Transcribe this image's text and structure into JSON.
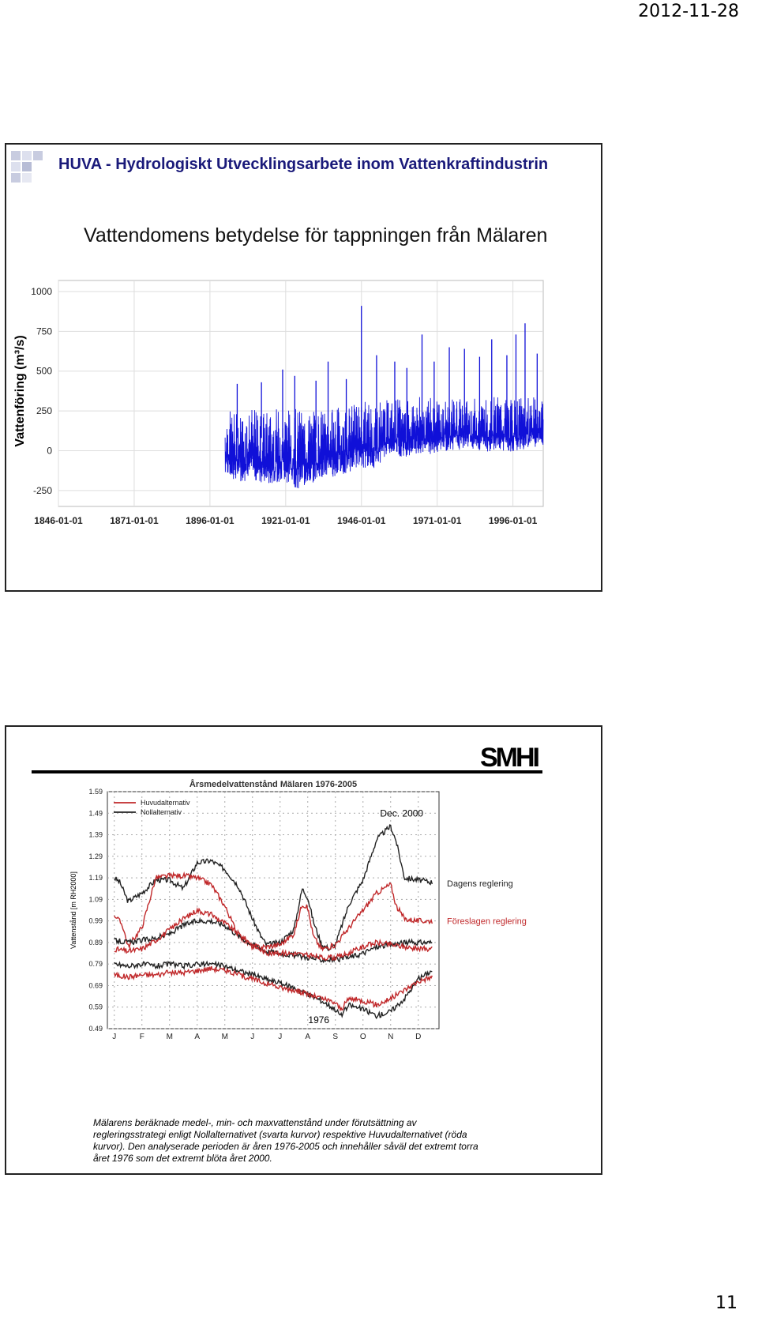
{
  "page": {
    "date": "2012-11-28",
    "number": "11"
  },
  "slide1": {
    "header": "HUVA - Hydrologiskt Utvecklingsarbete inom Vattenkraftindustrin",
    "title": "Vattendomens betydelse för tappningen från Mälaren",
    "chart_data": {
      "type": "line",
      "title": "",
      "ylabel": "Vattenföring (m³/s)",
      "xlabel": "",
      "x_tick_labels": [
        "1846-01-01",
        "1871-01-01",
        "1896-01-01",
        "1921-01-01",
        "1946-01-01",
        "1971-01-01",
        "1996-01-01"
      ],
      "y_tick_labels": [
        "1000",
        "750",
        "500",
        "250",
        "0",
        "-250"
      ],
      "yticks": [
        1000,
        750,
        500,
        250,
        0,
        -250
      ],
      "ylim": [
        -400,
        1000
      ],
      "xlim_years": [
        1846,
        2006
      ],
      "grid": true,
      "series": [
        {
          "color": "#1010d8",
          "x_range_years": [
            1901,
            2006
          ],
          "x_years": [
            1901,
            1905,
            1910,
            1915,
            1920,
            1925,
            1930,
            1935,
            1940,
            1945,
            1950,
            1955,
            1960,
            1965,
            1970,
            1975,
            1980,
            1985,
            1990,
            1995,
            2000,
            2006
          ],
          "baseline_low": [
            -150,
            -200,
            -180,
            -220,
            -190,
            -240,
            -200,
            -170,
            -160,
            -100,
            -120,
            -20,
            -40,
            -30,
            -20,
            0,
            10,
            -10,
            0,
            -10,
            10,
            20
          ],
          "baseline_high": [
            260,
            240,
            260,
            250,
            270,
            260,
            250,
            260,
            280,
            300,
            330,
            320,
            330,
            340,
            330,
            320,
            330,
            330,
            340,
            330,
            340,
            330
          ],
          "peaks": [
            {
              "x": 1905,
              "y": 420
            },
            {
              "x": 1913,
              "y": 430
            },
            {
              "x": 1920,
              "y": 510
            },
            {
              "x": 1924,
              "y": 470
            },
            {
              "x": 1931,
              "y": 440
            },
            {
              "x": 1935,
              "y": 560
            },
            {
              "x": 1941,
              "y": 450
            },
            {
              "x": 1946,
              "y": 910
            },
            {
              "x": 1951,
              "y": 600
            },
            {
              "x": 1957,
              "y": 560
            },
            {
              "x": 1961,
              "y": 520
            },
            {
              "x": 1966,
              "y": 730
            },
            {
              "x": 1970,
              "y": 560
            },
            {
              "x": 1975,
              "y": 650
            },
            {
              "x": 1980,
              "y": 640
            },
            {
              "x": 1985,
              "y": 590
            },
            {
              "x": 1989,
              "y": 700
            },
            {
              "x": 1994,
              "y": 600
            },
            {
              "x": 1997,
              "y": 730
            },
            {
              "x": 2000,
              "y": 800
            },
            {
              "x": 2004,
              "y": 610
            }
          ]
        }
      ]
    }
  },
  "slide2": {
    "logo": "SMHI",
    "caption_lines": [
      "Mälarens beräknade medel-, min- och maxvattenstånd under förutsättning av",
      "regleringsstrategi enligt Nollalternativet (svarta kurvor) respektive Huvudalternativet (röda",
      "kurvor). Den analyserade perioden är åren 1976-2005 och innehåller såväl det extremt torra",
      "året 1976 som det extremt blöta året 2000."
    ],
    "chart_data": {
      "type": "line",
      "title": "Årsmedelvattenstånd Mälaren 1976-2005",
      "ylabel": "Vattenstånd [m RH2000]",
      "xlabel": "",
      "categories": [
        "J",
        "F",
        "M",
        "A",
        "M",
        "J",
        "J",
        "A",
        "S",
        "O",
        "N",
        "D"
      ],
      "y_tick_labels": [
        "1.59",
        "1.49",
        "1.39",
        "1.29",
        "1.19",
        "1.09",
        "0.99",
        "0.89",
        "0.79",
        "0.69",
        "0.59",
        "0.49"
      ],
      "yticks": [
        1.59,
        1.49,
        1.39,
        1.29,
        1.19,
        1.09,
        0.99,
        0.89,
        0.79,
        0.69,
        0.59,
        0.49
      ],
      "ylim": [
        0.49,
        1.59
      ],
      "legend": {
        "position": "top-left",
        "items": [
          {
            "label": "Huvudalternativ",
            "color": "#c0282a"
          },
          {
            "label": "Nollalternativ",
            "color": "#222222"
          }
        ]
      },
      "annotations": [
        {
          "text": "Dec. 2000",
          "x_month": 10.4,
          "y": 1.49
        },
        {
          "text": "1976",
          "x_month": 7.4,
          "y": 0.53
        },
        {
          "text": "Dagens reglering",
          "side": "right",
          "y": 1.165
        },
        {
          "text": "Föreslagen reglering",
          "side": "right",
          "y": 0.99,
          "color": "#c0282a"
        }
      ],
      "series": [
        {
          "name": "Nollalternativ max",
          "color": "#222222",
          "x": [
            0,
            0.2,
            0.5,
            1,
            1.5,
            2,
            2.5,
            3,
            3.5,
            4,
            4.5,
            5,
            5.3,
            5.5,
            6,
            6.5,
            6.8,
            7,
            7.2,
            7.5,
            7.8,
            8,
            8.5,
            9,
            9.5,
            10,
            10.2,
            10.5,
            11,
            11.5
          ],
          "values": [
            1.19,
            1.17,
            1.08,
            1.12,
            1.18,
            1.18,
            1.14,
            1.26,
            1.27,
            1.23,
            1.15,
            1.0,
            0.92,
            0.88,
            0.89,
            0.95,
            1.14,
            1.1,
            0.99,
            0.88,
            0.86,
            0.88,
            1.07,
            1.18,
            1.37,
            1.43,
            1.36,
            1.19,
            1.18,
            1.17
          ]
        },
        {
          "name": "Huvudalternativ max",
          "color": "#c0282a",
          "x": [
            0,
            0.3,
            0.5,
            1,
            1.5,
            2,
            2.5,
            3,
            3.5,
            4,
            4.5,
            5,
            5.3,
            5.5,
            6,
            6.5,
            6.8,
            7,
            7.2,
            7.5,
            7.8,
            8,
            8.5,
            9,
            9.5,
            10,
            10.2,
            10.5,
            11,
            11.5
          ],
          "values": [
            1.02,
            0.97,
            0.87,
            0.96,
            1.19,
            1.2,
            1.2,
            1.19,
            1.16,
            1.06,
            0.92,
            0.87,
            0.87,
            0.87,
            0.88,
            0.93,
            1.07,
            1.05,
            0.92,
            0.86,
            0.87,
            0.88,
            0.96,
            1.04,
            1.12,
            1.16,
            1.06,
            1.0,
            0.99,
            0.99
          ]
        },
        {
          "name": "Nollalternativ medel",
          "color": "#222222",
          "x": [
            0,
            0.5,
            1,
            1.5,
            2,
            2.5,
            3,
            3.5,
            4,
            4.5,
            5,
            5.5,
            6,
            6.5,
            7,
            7.5,
            8,
            8.5,
            9,
            9.5,
            10,
            10.5,
            11,
            11.5
          ],
          "values": [
            0.9,
            0.89,
            0.9,
            0.91,
            0.93,
            0.97,
            0.99,
            0.99,
            0.97,
            0.92,
            0.88,
            0.85,
            0.84,
            0.83,
            0.82,
            0.81,
            0.81,
            0.82,
            0.84,
            0.87,
            0.88,
            0.89,
            0.89,
            0.89
          ]
        },
        {
          "name": "Huvudalternativ medel",
          "color": "#c0282a",
          "x": [
            0,
            0.5,
            1,
            1.5,
            2,
            2.5,
            3,
            3.5,
            4,
            4.5,
            5,
            5.5,
            6,
            6.5,
            7,
            7.5,
            8,
            8.5,
            9,
            9.5,
            10,
            10.5,
            11,
            11.5
          ],
          "values": [
            0.86,
            0.85,
            0.86,
            0.9,
            0.95,
            1.0,
            1.04,
            1.02,
            0.98,
            0.93,
            0.88,
            0.84,
            0.84,
            0.84,
            0.83,
            0.82,
            0.82,
            0.84,
            0.87,
            0.89,
            0.88,
            0.87,
            0.86,
            0.86
          ]
        },
        {
          "name": "Nollalternativ min",
          "color": "#222222",
          "x": [
            0,
            0.5,
            1,
            1.5,
            2,
            2.5,
            3,
            3.5,
            4,
            4.5,
            5,
            5.5,
            6,
            6.5,
            7,
            7.5,
            8,
            8.2,
            8.5,
            9,
            9.5,
            10,
            10.5,
            11,
            11.5
          ],
          "values": [
            0.79,
            0.78,
            0.79,
            0.78,
            0.79,
            0.78,
            0.79,
            0.79,
            0.78,
            0.76,
            0.74,
            0.72,
            0.7,
            0.68,
            0.65,
            0.62,
            0.58,
            0.55,
            0.6,
            0.58,
            0.55,
            0.57,
            0.63,
            0.72,
            0.76
          ]
        },
        {
          "name": "Huvudalternativ min",
          "color": "#c0282a",
          "x": [
            0,
            0.5,
            1,
            1.5,
            2,
            2.5,
            3,
            3.5,
            4,
            4.5,
            5,
            5.5,
            6,
            6.5,
            7,
            7.5,
            8,
            8.2,
            8.5,
            9,
            9.5,
            10,
            10.5,
            11,
            11.5
          ],
          "values": [
            0.74,
            0.73,
            0.74,
            0.74,
            0.75,
            0.75,
            0.76,
            0.77,
            0.76,
            0.74,
            0.72,
            0.7,
            0.68,
            0.67,
            0.65,
            0.63,
            0.61,
            0.58,
            0.63,
            0.62,
            0.6,
            0.63,
            0.67,
            0.71,
            0.73
          ]
        }
      ]
    }
  }
}
